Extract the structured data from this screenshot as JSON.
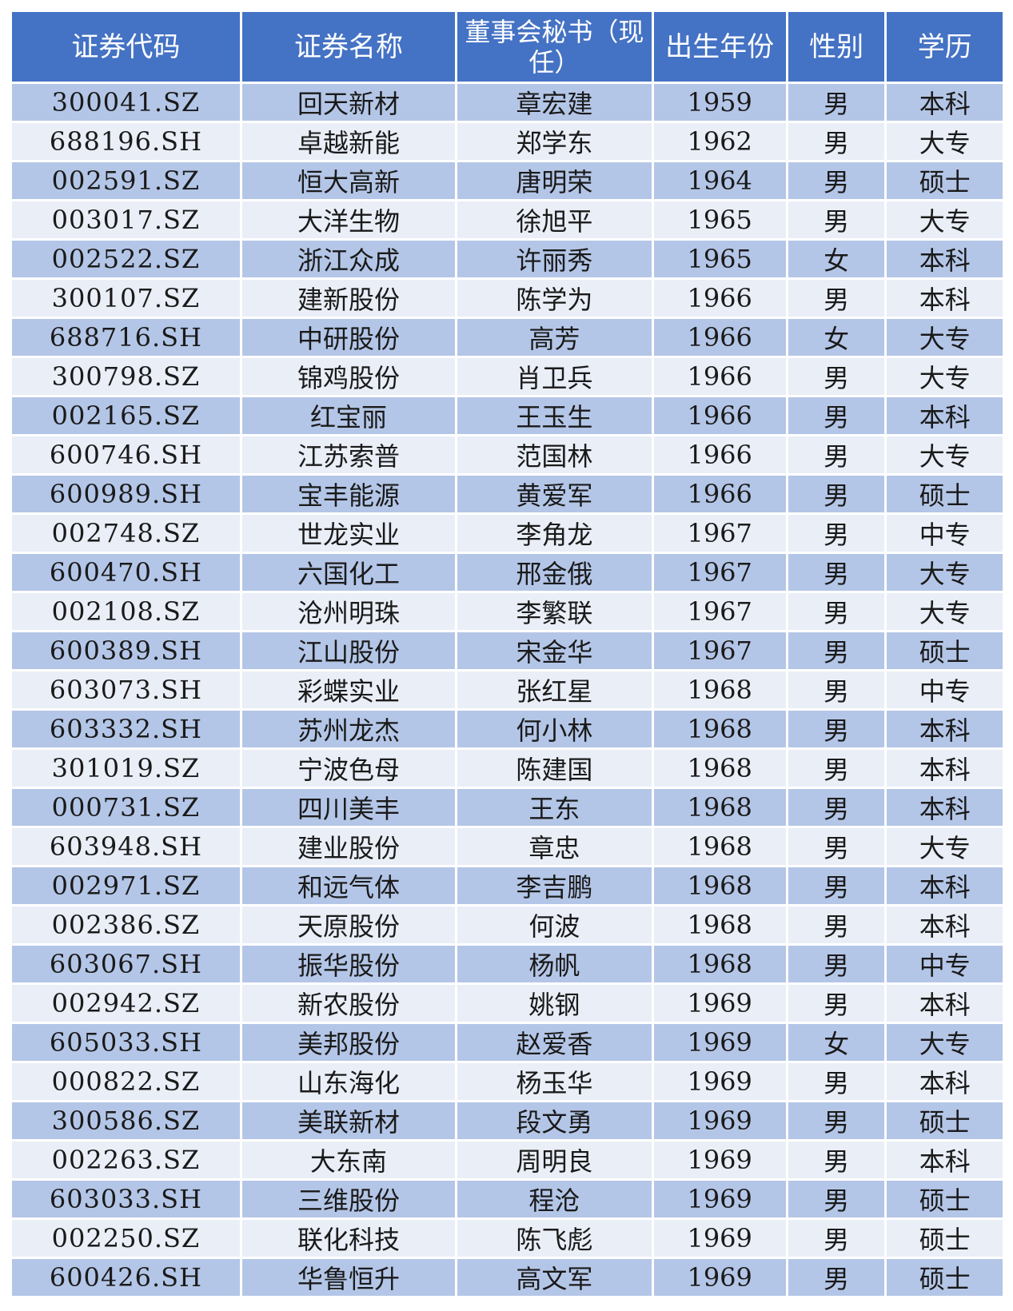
{
  "colors": {
    "header_bg": "#4472C4",
    "row_odd": "#B4C6E7",
    "row_even": "#E9EEF7"
  },
  "headers": [
    "证券代码",
    "证券名称",
    "董事会秘书（现任）",
    "出生年份",
    "性别",
    "学历"
  ],
  "rows": [
    [
      "300041.SZ",
      "回天新材",
      "章宏建",
      "1959",
      "男",
      "本科"
    ],
    [
      "688196.SH",
      "卓越新能",
      "郑学东",
      "1962",
      "男",
      "大专"
    ],
    [
      "002591.SZ",
      "恒大高新",
      "唐明荣",
      "1964",
      "男",
      "硕士"
    ],
    [
      "003017.SZ",
      "大洋生物",
      "徐旭平",
      "1965",
      "男",
      "大专"
    ],
    [
      "002522.SZ",
      "浙江众成",
      "许丽秀",
      "1965",
      "女",
      "本科"
    ],
    [
      "300107.SZ",
      "建新股份",
      "陈学为",
      "1966",
      "男",
      "本科"
    ],
    [
      "688716.SH",
      "中研股份",
      "高芳",
      "1966",
      "女",
      "大专"
    ],
    [
      "300798.SZ",
      "锦鸡股份",
      "肖卫兵",
      "1966",
      "男",
      "大专"
    ],
    [
      "002165.SZ",
      "红宝丽",
      "王玉生",
      "1966",
      "男",
      "本科"
    ],
    [
      "600746.SH",
      "江苏索普",
      "范国林",
      "1966",
      "男",
      "大专"
    ],
    [
      "600989.SH",
      "宝丰能源",
      "黄爱军",
      "1966",
      "男",
      "硕士"
    ],
    [
      "002748.SZ",
      "世龙实业",
      "李角龙",
      "1967",
      "男",
      "中专"
    ],
    [
      "600470.SH",
      "六国化工",
      "邢金俄",
      "1967",
      "男",
      "大专"
    ],
    [
      "002108.SZ",
      "沧州明珠",
      "李繁联",
      "1967",
      "男",
      "大专"
    ],
    [
      "600389.SH",
      "江山股份",
      "宋金华",
      "1967",
      "男",
      "硕士"
    ],
    [
      "603073.SH",
      "彩蝶实业",
      "张红星",
      "1968",
      "男",
      "中专"
    ],
    [
      "603332.SH",
      "苏州龙杰",
      "何小林",
      "1968",
      "男",
      "本科"
    ],
    [
      "301019.SZ",
      "宁波色母",
      "陈建国",
      "1968",
      "男",
      "本科"
    ],
    [
      "000731.SZ",
      "四川美丰",
      "王东",
      "1968",
      "男",
      "本科"
    ],
    [
      "603948.SH",
      "建业股份",
      "章忠",
      "1968",
      "男",
      "大专"
    ],
    [
      "002971.SZ",
      "和远气体",
      "李吉鹏",
      "1968",
      "男",
      "本科"
    ],
    [
      "002386.SZ",
      "天原股份",
      "何波",
      "1968",
      "男",
      "本科"
    ],
    [
      "603067.SH",
      "振华股份",
      "杨帆",
      "1968",
      "男",
      "中专"
    ],
    [
      "002942.SZ",
      "新农股份",
      "姚钢",
      "1969",
      "男",
      "本科"
    ],
    [
      "605033.SH",
      "美邦股份",
      "赵爱香",
      "1969",
      "女",
      "大专"
    ],
    [
      "000822.SZ",
      "山东海化",
      "杨玉华",
      "1969",
      "男",
      "本科"
    ],
    [
      "300586.SZ",
      "美联新材",
      "段文勇",
      "1969",
      "男",
      "硕士"
    ],
    [
      "002263.SZ",
      "大东南",
      "周明良",
      "1969",
      "男",
      "本科"
    ],
    [
      "603033.SH",
      "三维股份",
      "程沧",
      "1969",
      "男",
      "硕士"
    ],
    [
      "002250.SZ",
      "联化科技",
      "陈飞彪",
      "1969",
      "男",
      "硕士"
    ],
    [
      "600426.SH",
      "华鲁恒升",
      "高文军",
      "1969",
      "男",
      "硕士"
    ]
  ]
}
